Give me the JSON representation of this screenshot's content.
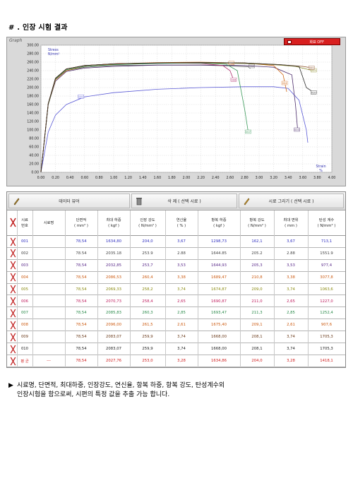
{
  "page": {
    "title": "# . 인장 시험 결과"
  },
  "graph": {
    "panel_label": "Graph",
    "close_label": "화표 OFF",
    "colors": {
      "panel_bg": "#d9d9d9",
      "plot_bg": "#ffffff"
    }
  },
  "chart_data": {
    "type": "line",
    "ylabel": "Stress\nN/mm²",
    "xlabel": "Strain\n%",
    "xlim": [
      0,
      4
    ],
    "ylim": [
      0,
      300
    ],
    "x_ticks": [
      "0.00",
      "0.20",
      "0.40",
      "0.60",
      "0.80",
      "1.00",
      "1.20",
      "1.40",
      "1.60",
      "1.80",
      "2.00",
      "2.20",
      "2.40",
      "2.60",
      "2.80",
      "3.00",
      "3.20",
      "3.40",
      "3.60",
      "3.80",
      "4.00"
    ],
    "y_ticks": [
      "0.00",
      "20.00",
      "40.00",
      "60.00",
      "80.00",
      "100.00",
      "120.00",
      "140.00",
      "160.00",
      "180.00",
      "200.00",
      "220.00",
      "240.00",
      "260.00",
      "280.00",
      "300.00"
    ],
    "grid": true,
    "series": [
      {
        "name": "001",
        "color": "#5a5ad6",
        "points": [
          [
            0,
            0
          ],
          [
            0.1,
            95
          ],
          [
            0.2,
            135
          ],
          [
            0.35,
            160
          ],
          [
            0.6,
            178
          ],
          [
            1.0,
            188
          ],
          [
            1.6,
            196
          ],
          [
            2.2,
            200
          ],
          [
            2.8,
            202
          ],
          [
            3.2,
            202
          ],
          [
            3.4,
            198
          ],
          [
            3.55,
            170
          ],
          [
            3.65,
            100
          ],
          [
            3.67,
            70
          ]
        ],
        "label_at": [
          0.55,
          178
        ]
      },
      {
        "name": "002",
        "color": "#555555",
        "points": [
          [
            0,
            0
          ],
          [
            0.1,
            160
          ],
          [
            0.2,
            220
          ],
          [
            0.35,
            240
          ],
          [
            0.6,
            248
          ],
          [
            1.0,
            252
          ],
          [
            1.6,
            253
          ],
          [
            2.2,
            253
          ],
          [
            2.6,
            251
          ],
          [
            2.85,
            249
          ],
          [
            2.88,
            245
          ]
        ],
        "label_at": [
          2.9,
          250
        ]
      },
      {
        "name": "003",
        "color": "#4a2a6a",
        "points": [
          [
            0,
            0
          ],
          [
            0.1,
            160
          ],
          [
            0.2,
            215
          ],
          [
            0.35,
            238
          ],
          [
            0.6,
            246
          ],
          [
            1.0,
            250
          ],
          [
            1.6,
            253
          ],
          [
            2.2,
            253
          ],
          [
            2.8,
            252
          ],
          [
            3.2,
            248
          ],
          [
            3.45,
            230
          ],
          [
            3.5,
            160
          ],
          [
            3.53,
            100
          ]
        ],
        "label_at": [
          3.52,
          100
        ]
      },
      {
        "name": "004",
        "color": "#d06a1a",
        "points": [
          [
            0,
            0
          ],
          [
            0.1,
            160
          ],
          [
            0.2,
            218
          ],
          [
            0.35,
            240
          ],
          [
            0.6,
            250
          ],
          [
            1.0,
            255
          ],
          [
            1.6,
            258
          ],
          [
            2.2,
            259
          ],
          [
            2.8,
            258
          ],
          [
            3.2,
            252
          ],
          [
            3.33,
            230
          ],
          [
            3.38,
            190
          ]
        ],
        "label_at": [
          3.35,
          210
        ]
      },
      {
        "name": "005",
        "color": "#8a8a2a",
        "points": [
          [
            0,
            0
          ],
          [
            0.1,
            162
          ],
          [
            0.2,
            222
          ],
          [
            0.35,
            244
          ],
          [
            0.6,
            252
          ],
          [
            1.0,
            256
          ],
          [
            1.6,
            258
          ],
          [
            2.2,
            258
          ],
          [
            2.8,
            257
          ],
          [
            3.2,
            254
          ],
          [
            3.5,
            250
          ],
          [
            3.74,
            240
          ]
        ],
        "label_at": [
          3.75,
          240
        ]
      },
      {
        "name": "006",
        "color": "#b03070",
        "points": [
          [
            0,
            0
          ],
          [
            0.1,
            162
          ],
          [
            0.2,
            222
          ],
          [
            0.35,
            244
          ],
          [
            0.6,
            252
          ],
          [
            1.0,
            256
          ],
          [
            1.6,
            258
          ],
          [
            2.2,
            257
          ],
          [
            2.5,
            252
          ],
          [
            2.6,
            240
          ],
          [
            2.65,
            218
          ]
        ],
        "label_at": [
          2.65,
          218
        ]
      },
      {
        "name": "007",
        "color": "#3a9a5a",
        "points": [
          [
            0,
            0
          ],
          [
            0.1,
            160
          ],
          [
            0.2,
            220
          ],
          [
            0.35,
            242
          ],
          [
            0.6,
            250
          ],
          [
            1.0,
            254
          ],
          [
            1.6,
            257
          ],
          [
            2.2,
            258
          ],
          [
            2.55,
            255
          ],
          [
            2.7,
            240
          ],
          [
            2.8,
            150
          ],
          [
            2.85,
            95
          ]
        ],
        "label_at": [
          2.85,
          95
        ]
      },
      {
        "name": "008",
        "color": "#cc6a1a",
        "points": [
          [
            0,
            0
          ],
          [
            0.1,
            162
          ],
          [
            0.2,
            222
          ],
          [
            0.35,
            244
          ],
          [
            0.6,
            252
          ],
          [
            1.0,
            256
          ],
          [
            1.6,
            259
          ],
          [
            2.2,
            260
          ],
          [
            2.5,
            259
          ],
          [
            2.61,
            258
          ]
        ],
        "label_at": [
          2.62,
          257
        ]
      },
      {
        "name": "009",
        "color": "#8a4a20",
        "points": [
          [
            0,
            0
          ],
          [
            0.1,
            162
          ],
          [
            0.2,
            222
          ],
          [
            0.35,
            244
          ],
          [
            0.6,
            252
          ],
          [
            1.0,
            256
          ],
          [
            1.6,
            258
          ],
          [
            2.2,
            259
          ],
          [
            2.8,
            258
          ],
          [
            3.3,
            254
          ],
          [
            3.6,
            250
          ],
          [
            3.74,
            246
          ]
        ],
        "label_at": [
          3.72,
          246
        ]
      },
      {
        "name": "010",
        "color": "#2a2a2a",
        "points": [
          [
            0,
            0
          ],
          [
            0.1,
            162
          ],
          [
            0.2,
            222
          ],
          [
            0.35,
            244
          ],
          [
            0.6,
            252
          ],
          [
            1.0,
            256
          ],
          [
            1.6,
            258
          ],
          [
            2.2,
            259
          ],
          [
            2.8,
            258
          ],
          [
            3.3,
            254
          ],
          [
            3.55,
            250
          ],
          [
            3.65,
            200
          ],
          [
            3.74,
            190
          ]
        ],
        "label_at": [
          3.75,
          188
        ]
      }
    ]
  },
  "toolbar": {
    "data_label": "데이터 뷰어",
    "delete_label": "삭 제 ( 선택 시료 )",
    "draw_label": "시료 그리기 ( 선택 시료 )"
  },
  "table": {
    "headers": [
      "시료\n번호",
      "시료명",
      "단면적\n( mm² )",
      "최대 하중\n( kgf )",
      "인장 강도\n( N/mm² )",
      "연신율\n( % )",
      "항복 하중\n( kgf )",
      "항복 강도\n( N/mm² )",
      "최대 변위\n( mm )",
      "탄성 계수\n( N/mm² )"
    ],
    "rows": [
      {
        "no": "001",
        "name": "",
        "area": "78,54",
        "max_load": "1634,80",
        "tensile": "204,0",
        "elong": "3,67",
        "yield_load": "1298,73",
        "yield_str": "162,1",
        "max_disp": "3,67",
        "modulus": "713,1",
        "color": "#3030c0"
      },
      {
        "no": "002",
        "name": "",
        "area": "78.54",
        "max_load": "2035.18",
        "tensile": "253.9",
        "elong": "2.88",
        "yield_load": "1644.85",
        "yield_str": "205.2",
        "max_disp": "2.88",
        "modulus": "1551.9",
        "color": "#444444"
      },
      {
        "no": "003",
        "name": "",
        "area": "78,54",
        "max_load": "2032,85",
        "tensile": "253,7",
        "elong": "3,53",
        "yield_load": "1644,93",
        "yield_str": "205,3",
        "max_disp": "3,53",
        "modulus": "977,4",
        "color": "#5a2a8a"
      },
      {
        "no": "004",
        "name": "",
        "area": "78,54",
        "max_load": "2086,53",
        "tensile": "260,4",
        "elong": "3,38",
        "yield_load": "1689,47",
        "yield_str": "210,8",
        "max_disp": "3,38",
        "modulus": "3077,8",
        "color": "#cc5a10"
      },
      {
        "no": "005",
        "name": "",
        "area": "78,54",
        "max_load": "2069,33",
        "tensile": "258,2",
        "elong": "3,74",
        "yield_load": "1674,87",
        "yield_str": "209,0",
        "max_disp": "3,74",
        "modulus": "1063,6",
        "color": "#8a8a10"
      },
      {
        "no": "006",
        "name": "",
        "area": "78,54",
        "max_load": "2070,73",
        "tensile": "258,4",
        "elong": "2,65",
        "yield_load": "1690,87",
        "yield_str": "211,0",
        "max_disp": "2,65",
        "modulus": "1227,0",
        "color": "#c02060"
      },
      {
        "no": "007",
        "name": "",
        "area": "78,54",
        "max_load": "2085,83",
        "tensile": "260,3",
        "elong": "2,85",
        "yield_load": "1693,47",
        "yield_str": "211,3",
        "max_disp": "2,85",
        "modulus": "1252,4",
        "color": "#2a8a4a"
      },
      {
        "no": "008",
        "name": "",
        "area": "78,54",
        "max_load": "2096,00",
        "tensile": "261,5",
        "elong": "2,61",
        "yield_load": "1675,40",
        "yield_str": "209,1",
        "max_disp": "2,61",
        "modulus": "907,6",
        "color": "#cc5a10"
      },
      {
        "no": "009",
        "name": "",
        "area": "78,54",
        "max_load": "2083,07",
        "tensile": "259,9",
        "elong": "3,74",
        "yield_load": "1668,00",
        "yield_str": "208,1",
        "max_disp": "3,74",
        "modulus": "1705,3",
        "color": "#6a3a1a"
      },
      {
        "no": "010",
        "name": "",
        "area": "78,54",
        "max_load": "2083,07",
        "tensile": "259,9",
        "elong": "3,74",
        "yield_load": "1668,00",
        "yield_str": "208,1",
        "max_disp": "3,74",
        "modulus": "1705,3",
        "color": "#222222"
      },
      {
        "no": "평 균",
        "name": "---",
        "area": "78,54",
        "max_load": "2027,76",
        "tensile": "253,0",
        "elong": "3,28",
        "yield_load": "1634,86",
        "yield_str": "204,0",
        "max_disp": "3,28",
        "modulus": "1418,1",
        "color": "#d02020"
      }
    ]
  },
  "footnote": {
    "bullet": "▶",
    "line1": "시료명, 단면적, 최대하중, 인장강도, 연신율, 항복 하중, 항복 강도, 탄성계수외",
    "line2": "인장시험을 함으로써, 시편의 특정 값을 추출 가능 합니다."
  }
}
